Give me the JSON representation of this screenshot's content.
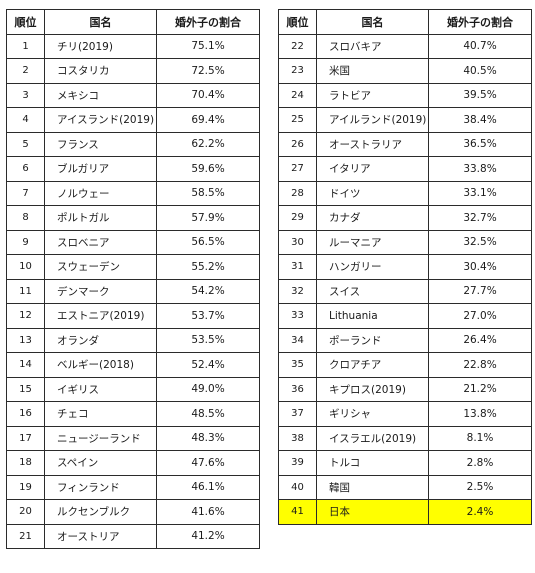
{
  "headers": {
    "rank": "順位",
    "country": "国名",
    "ratio": "婚外子の割合"
  },
  "highlight_color": "#ffff00",
  "left_rows": [
    {
      "rank": "1",
      "country": "チリ(2019)",
      "ratio": "75.1%"
    },
    {
      "rank": "2",
      "country": "コスタリカ",
      "ratio": "72.5%"
    },
    {
      "rank": "3",
      "country": "メキシコ",
      "ratio": "70.4%"
    },
    {
      "rank": "4",
      "country": "アイスランド(2019)",
      "ratio": "69.4%"
    },
    {
      "rank": "5",
      "country": "フランス",
      "ratio": "62.2%"
    },
    {
      "rank": "6",
      "country": "ブルガリア",
      "ratio": "59.6%"
    },
    {
      "rank": "7",
      "country": "ノルウェー",
      "ratio": "58.5%"
    },
    {
      "rank": "8",
      "country": "ポルトガル",
      "ratio": "57.9%"
    },
    {
      "rank": "9",
      "country": "スロベニア",
      "ratio": "56.5%"
    },
    {
      "rank": "10",
      "country": "スウェーデン",
      "ratio": "55.2%"
    },
    {
      "rank": "11",
      "country": "デンマーク",
      "ratio": "54.2%"
    },
    {
      "rank": "12",
      "country": "エストニア(2019)",
      "ratio": "53.7%"
    },
    {
      "rank": "13",
      "country": "オランダ",
      "ratio": "53.5%"
    },
    {
      "rank": "14",
      "country": "ベルギー(2018)",
      "ratio": "52.4%"
    },
    {
      "rank": "15",
      "country": "イギリス",
      "ratio": "49.0%"
    },
    {
      "rank": "16",
      "country": "チェコ",
      "ratio": "48.5%"
    },
    {
      "rank": "17",
      "country": "ニュージーランド",
      "ratio": "48.3%"
    },
    {
      "rank": "18",
      "country": "スペイン",
      "ratio": "47.6%"
    },
    {
      "rank": "19",
      "country": "フィンランド",
      "ratio": "46.1%"
    },
    {
      "rank": "20",
      "country": "ルクセンブルク",
      "ratio": "41.6%"
    },
    {
      "rank": "21",
      "country": "オーストリア",
      "ratio": "41.2%"
    }
  ],
  "right_rows": [
    {
      "rank": "22",
      "country": "スロバキア",
      "ratio": "40.7%"
    },
    {
      "rank": "23",
      "country": "米国",
      "ratio": "40.5%"
    },
    {
      "rank": "24",
      "country": "ラトビア",
      "ratio": "39.5%"
    },
    {
      "rank": "25",
      "country": "アイルランド(2019)",
      "ratio": "38.4%"
    },
    {
      "rank": "26",
      "country": "オーストラリア",
      "ratio": "36.5%"
    },
    {
      "rank": "27",
      "country": "イタリア",
      "ratio": "33.8%"
    },
    {
      "rank": "28",
      "country": "ドイツ",
      "ratio": "33.1%"
    },
    {
      "rank": "29",
      "country": "カナダ",
      "ratio": "32.7%"
    },
    {
      "rank": "30",
      "country": "ルーマニア",
      "ratio": "32.5%"
    },
    {
      "rank": "31",
      "country": "ハンガリー",
      "ratio": "30.4%"
    },
    {
      "rank": "32",
      "country": "スイス",
      "ratio": "27.7%"
    },
    {
      "rank": "33",
      "country": "Lithuania",
      "ratio": "27.0%"
    },
    {
      "rank": "34",
      "country": "ポーランド",
      "ratio": "26.4%"
    },
    {
      "rank": "35",
      "country": "クロアチア",
      "ratio": "22.8%"
    },
    {
      "rank": "36",
      "country": "キプロス(2019)",
      "ratio": "21.2%"
    },
    {
      "rank": "37",
      "country": "ギリシャ",
      "ratio": "13.8%"
    },
    {
      "rank": "38",
      "country": "イスラエル(2019)",
      "ratio": "8.1%"
    },
    {
      "rank": "39",
      "country": "トルコ",
      "ratio": "2.8%"
    },
    {
      "rank": "40",
      "country": "韓国",
      "ratio": "2.5%"
    },
    {
      "rank": "41",
      "country": "日本",
      "ratio": "2.4%",
      "highlighted": true
    }
  ]
}
